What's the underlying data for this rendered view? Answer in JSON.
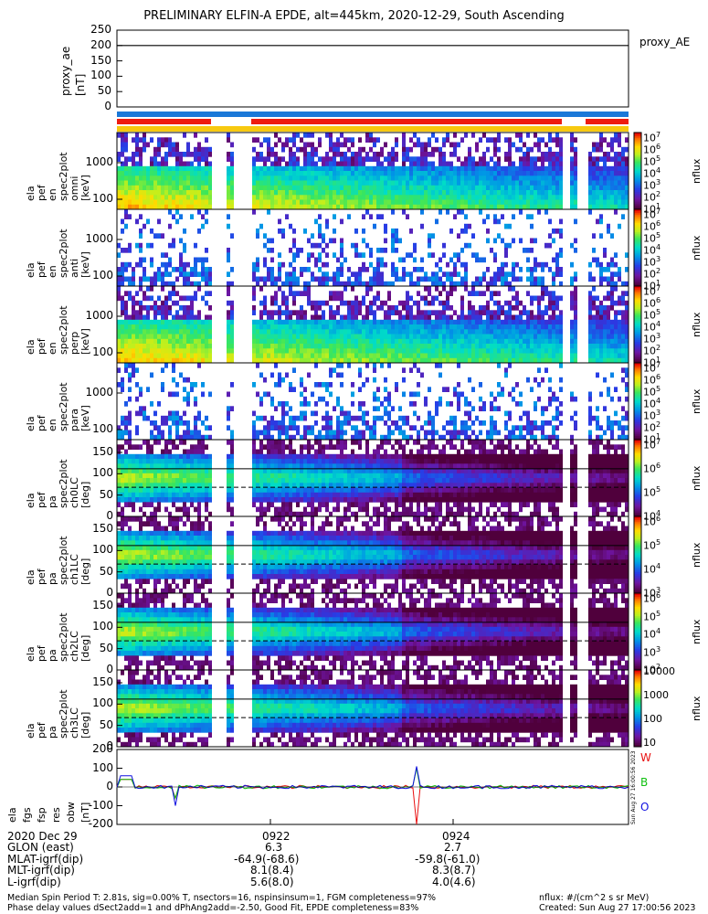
{
  "title": "PRELIMINARY ELFIN-A EPDE, alt=445km, 2020-12-29, South Ascending",
  "ae_panel": {
    "ylabel": [
      "proxy_ae",
      "[nT]"
    ],
    "yticks": [
      "250",
      "200",
      "150",
      "100",
      "50",
      "0"
    ],
    "legend": "proxy_AE"
  },
  "panels": [
    {
      "ylabel": [
        "ela",
        "pef",
        "en",
        "spec2plot",
        "omni",
        "[keV]"
      ],
      "yticks": [
        "1000",
        "100"
      ],
      "cbar_label": "nflux",
      "cbar_ticks": [
        "10^7",
        "10^6",
        "10^5",
        "10^4",
        "10^3",
        "10^2",
        "10^1"
      ]
    },
    {
      "ylabel": [
        "ela",
        "pef",
        "en",
        "spec2plot",
        "anti",
        "[keV]"
      ],
      "yticks": [
        "1000",
        "100"
      ],
      "cbar_label": "nflux",
      "cbar_ticks": [
        "10^7",
        "10^6",
        "10^5",
        "10^4",
        "10^3",
        "10^2",
        "10^1"
      ]
    },
    {
      "ylabel": [
        "ela",
        "pef",
        "en",
        "spec2plot",
        "perp",
        "[keV]"
      ],
      "yticks": [
        "1000",
        "100"
      ],
      "cbar_label": "nflux",
      "cbar_ticks": [
        "10^7",
        "10^6",
        "10^5",
        "10^4",
        "10^3",
        "10^2",
        "10^1"
      ]
    },
    {
      "ylabel": [
        "ela",
        "pef",
        "en",
        "spec2plot",
        "para",
        "[keV]"
      ],
      "yticks": [
        "1000",
        "100"
      ],
      "cbar_label": "nflux",
      "cbar_ticks": [
        "10^7",
        "10^6",
        "10^5",
        "10^4",
        "10^3",
        "10^2",
        "10^1"
      ]
    },
    {
      "ylabel": [
        "ela",
        "pef",
        "pa",
        "spec2plot",
        "ch0LC",
        "[deg]"
      ],
      "yticks": [
        "150",
        "100",
        "50",
        "0"
      ],
      "cbar_label": "nflux",
      "cbar_ticks": [
        "10^7",
        "10^6",
        "10^5",
        "10^4"
      ]
    },
    {
      "ylabel": [
        "ela",
        "pef",
        "pa",
        "spec2plot",
        "ch1LC",
        "[deg]"
      ],
      "yticks": [
        "150",
        "100",
        "50",
        "0"
      ],
      "cbar_label": "nflux",
      "cbar_ticks": [
        "10^6",
        "10^5",
        "10^4",
        "10^3"
      ]
    },
    {
      "ylabel": [
        "ela",
        "pef",
        "pa",
        "spec2plot",
        "ch2LC",
        "[deg]"
      ],
      "yticks": [
        "150",
        "100",
        "50",
        "0"
      ],
      "cbar_label": "nflux",
      "cbar_ticks": [
        "10^6",
        "10^5",
        "10^4",
        "10^3",
        "10^2"
      ]
    },
    {
      "ylabel": [
        "ela",
        "pef",
        "pa",
        "spec2plot",
        "ch3LC",
        "[deg]"
      ],
      "yticks": [
        "150",
        "100",
        "50",
        "0"
      ],
      "cbar_label": "nflux",
      "cbar_ticks": [
        "10000",
        "1000",
        "100",
        "10"
      ]
    }
  ],
  "b_panel": {
    "ylabel": [
      "ela",
      "fgs",
      "fsp",
      "res",
      "obw",
      "[nT]"
    ],
    "yticks": [
      "200",
      "100",
      "0",
      "-100",
      "-200"
    ],
    "components": [
      "W",
      "B",
      "O"
    ],
    "component_colors": [
      "#e81010",
      "#10c010",
      "#1010e0"
    ],
    "side_text": "Sun Aug 27 16:00:56 2023"
  },
  "xaxis": {
    "rows": [
      {
        "label": "2020 Dec 29",
        "values": [
          "0922",
          "0924"
        ]
      },
      {
        "label": "GLON (east)",
        "values": [
          "6.3",
          "2.7"
        ]
      },
      {
        "label": "MLAT-igrf(dip)",
        "values": [
          "-64.9(-68.6)",
          "-59.8(-61.0)"
        ]
      },
      {
        "label": "MLT-igrf(dip)",
        "values": [
          "8.1(8.4)",
          "8.3(8.7)"
        ]
      },
      {
        "label": "L-igrf(dip)",
        "values": [
          "5.6(8.0)",
          "4.0(4.6)"
        ]
      }
    ]
  },
  "footer": {
    "line1": "Median Spin Period T: 2.81s, sig=0.00% T, nsectors=16, nspinsinsum=1, FGM completeness=97%",
    "line2": "Phase delay values dSect2add=1 and dPhAng2add=-2.50, Good Fit, EPDE completeness=83%",
    "right1": "nflux: #/(cm^2 s sr MeV)",
    "right2": "Created: Sun Aug 27 17:00:56 2023"
  },
  "colors": {
    "red_bar": "#ee1c10",
    "blue_bar": "#1a78d8",
    "yellow_bar": "#f7c90f"
  },
  "chart_data": {
    "type": "heatmap",
    "title": "PRELIMINARY ELFIN-A EPDE, alt=445km, 2020-12-29, South Ascending",
    "proxy_ae_nT": 200,
    "ae_ylim": [
      0,
      250
    ],
    "energy_ylim_keV": [
      55,
      6000
    ],
    "pa_ylim_deg": [
      0,
      180
    ],
    "b_ylim_nT": [
      -200,
      200
    ],
    "x_major_ticks": [
      "0922",
      "0924"
    ],
    "b_spike": {
      "W": -200,
      "B": 100,
      "O": 110
    },
    "log_scale_energy": true
  }
}
